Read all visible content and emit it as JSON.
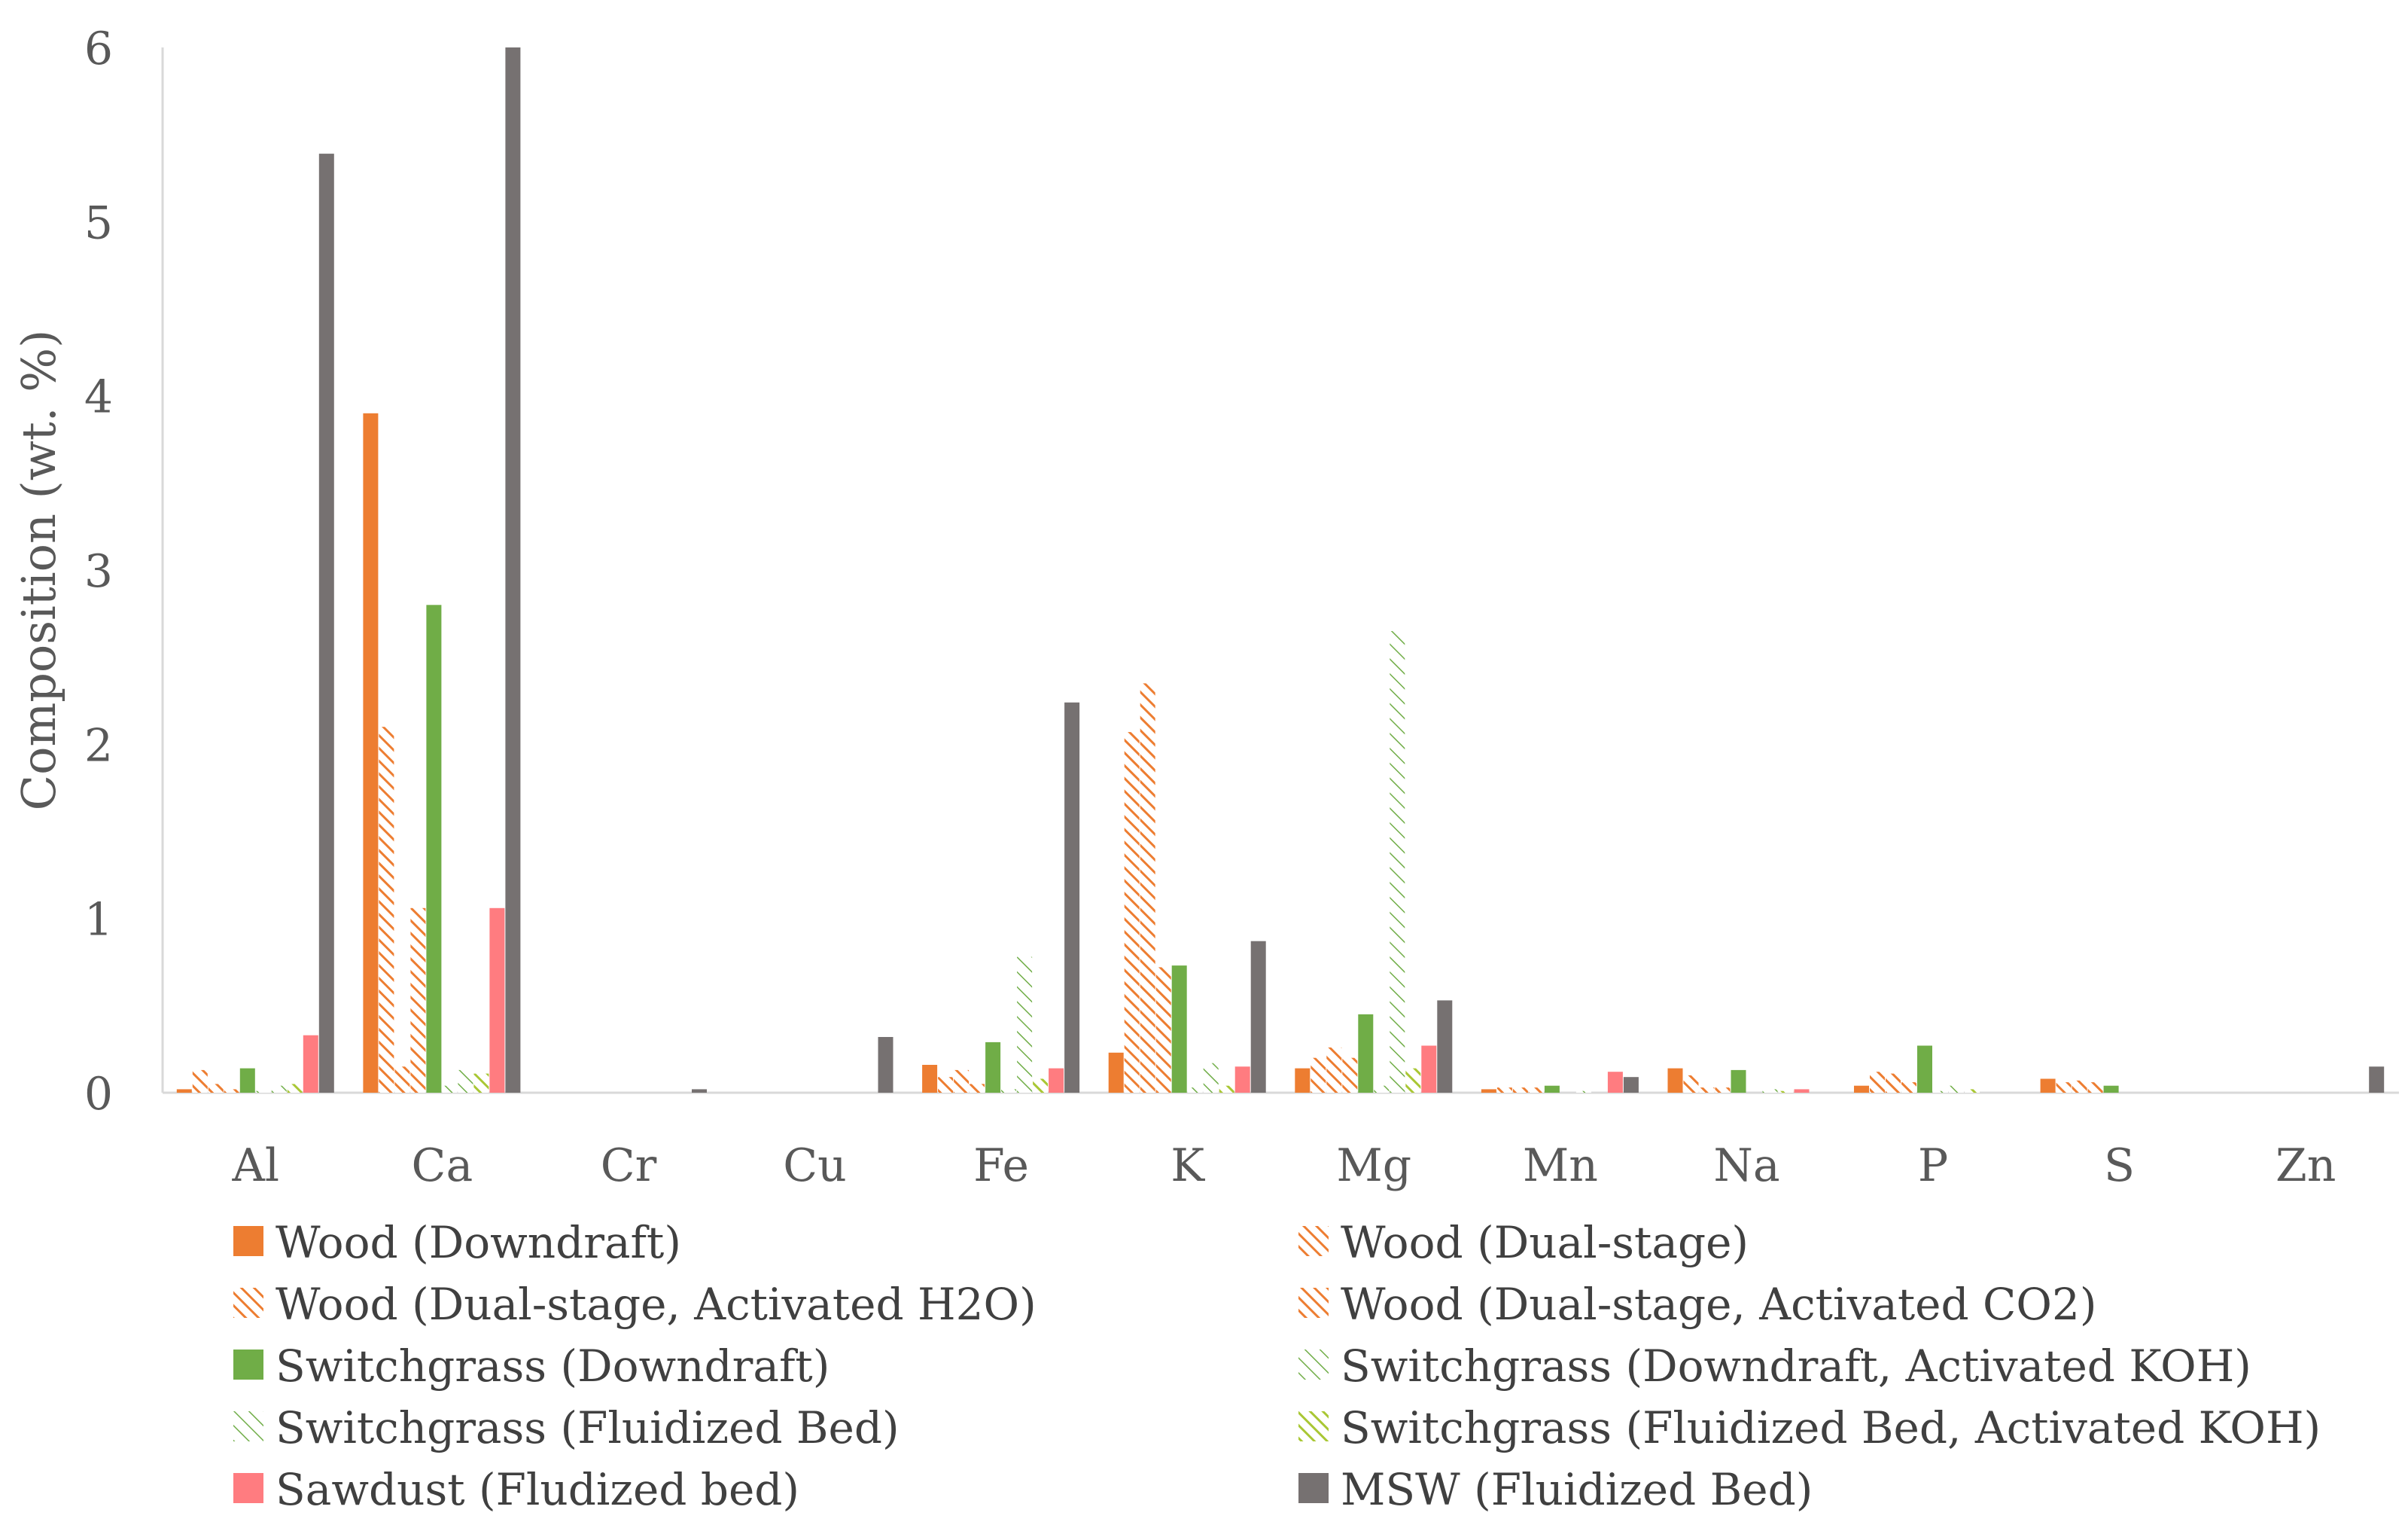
{
  "chart_data": {
    "type": "bar",
    "title": "",
    "xlabel": "",
    "ylabel": "Composition (wt. %)",
    "ylim": [
      0,
      6
    ],
    "yticks": [
      "0",
      "1",
      "2",
      "3",
      "4",
      "5",
      "6"
    ],
    "categories": [
      "Al",
      "Ca",
      "Cr",
      "Cu",
      "Fe",
      "K",
      "Mg",
      "Mn",
      "Na",
      "P",
      "S",
      "Zn"
    ],
    "series": [
      {
        "name": "Wood (Downdraft)",
        "color": "#ED7D31",
        "pattern": "solid",
        "values": [
          0.02,
          3.9,
          0,
          0,
          0.16,
          0.23,
          0.14,
          0.02,
          0.14,
          0.04,
          0.08,
          0
        ]
      },
      {
        "name": "Wood (Dual-stage)",
        "color": "#ED7D31",
        "pattern": "wide",
        "values": [
          0.13,
          2.1,
          0,
          0,
          0.09,
          2.07,
          0.2,
          0.03,
          0.1,
          0.12,
          0.06,
          0
        ]
      },
      {
        "name": "Wood (Dual-stage, Activated H2O)",
        "color": "#ED7D31",
        "pattern": "wide",
        "values": [
          0.05,
          0.15,
          0,
          0,
          0.13,
          2.35,
          0.26,
          0.03,
          0.03,
          0.11,
          0.07,
          0
        ]
      },
      {
        "name": "Wood (Dual-stage, Activated CO2)",
        "color": "#ED7D31",
        "pattern": "wide",
        "values": [
          0.02,
          1.06,
          0,
          0,
          0.05,
          0.72,
          0.2,
          0.03,
          0.03,
          0.06,
          0.06,
          0
        ]
      },
      {
        "name": "Switchgrass (Downdraft)",
        "color": "#70AD47",
        "pattern": "solid",
        "values": [
          0.14,
          2.8,
          0,
          0,
          0.29,
          0.73,
          0.45,
          0.04,
          0.13,
          0.27,
          0.04,
          0
        ]
      },
      {
        "name": "Switchgrass (Downdraft, Activated KOH)",
        "color": "#70AD47",
        "pattern": "light",
        "values": [
          0.01,
          0.04,
          0,
          0,
          0.02,
          0.03,
          0.04,
          0,
          0,
          0.01,
          0,
          0
        ]
      },
      {
        "name": "Switchgrass (Fluidized Bed)",
        "color": "#70AD47",
        "pattern": "light",
        "values": [
          0.04,
          0.13,
          0,
          0,
          0.78,
          0.17,
          2.65,
          0.01,
          0.02,
          0.04,
          0,
          0
        ]
      },
      {
        "name": "Switchgrass (Fluidized Bed, Activated KOH)",
        "color": "#A9C734",
        "pattern": "wide",
        "values": [
          0.05,
          0.11,
          0,
          0,
          0.08,
          0.04,
          0.14,
          0,
          0.01,
          0.02,
          0,
          0
        ]
      },
      {
        "name": "Sawdust (Fludized bed)",
        "color": "#FF7C80",
        "pattern": "solid",
        "values": [
          0.33,
          1.06,
          0,
          0,
          0.14,
          0.15,
          0.27,
          0.12,
          0.02,
          0,
          0,
          0
        ]
      },
      {
        "name": "MSW (Fluidized Bed)",
        "color": "#767171",
        "pattern": "solid",
        "values": [
          5.39,
          6.0,
          0.02,
          0.32,
          2.24,
          0.87,
          0.53,
          0.09,
          0,
          0,
          0,
          0.15
        ]
      }
    ],
    "grid": false,
    "legend_position": "bottom"
  }
}
